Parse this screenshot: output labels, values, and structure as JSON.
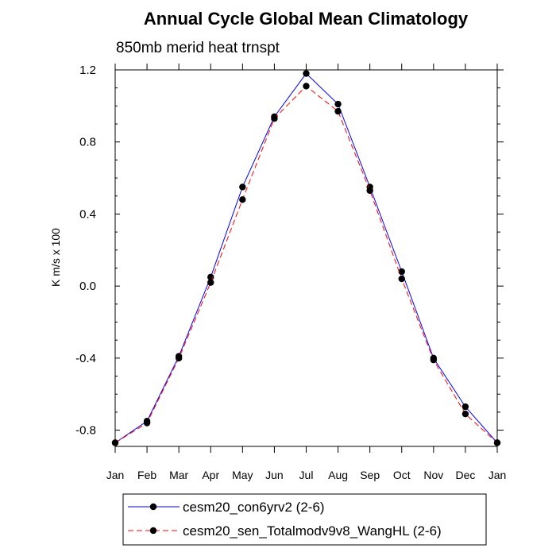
{
  "chart_data": {
    "type": "line",
    "title": "Annual Cycle Global Mean Climatology",
    "subtitle": "850mb merid heat trnspt",
    "xlabel": "",
    "ylabel": "K m/s x 100",
    "categories": [
      "Jan",
      "Feb",
      "Mar",
      "Apr",
      "May",
      "Jun",
      "Jul",
      "Aug",
      "Sep",
      "Oct",
      "Nov",
      "Dec",
      "Jan"
    ],
    "ylim": [
      -0.89,
      1.2
    ],
    "yticks": [
      -0.8,
      -0.4,
      0.0,
      0.4,
      0.8,
      1.2
    ],
    "ytick_labels": [
      "-0.8",
      "-0.4",
      "0.0",
      "0.4",
      "0.8",
      "1.2"
    ],
    "legend_position": "bottom",
    "series": [
      {
        "name": "cesm20_con6yrv2 (2-6)",
        "color": "#0000ff",
        "line_style": "solid",
        "values": [
          -0.87,
          -0.75,
          -0.39,
          0.05,
          0.55,
          0.94,
          1.18,
          1.01,
          0.55,
          0.08,
          -0.4,
          -0.67,
          -0.87
        ]
      },
      {
        "name": "cesm20_sen_Totalmodv9v8_WangHL (2-6)",
        "color": "#ff0000",
        "line_style": "dashed",
        "values": [
          -0.87,
          -0.76,
          -0.4,
          0.02,
          0.48,
          0.93,
          1.11,
          0.97,
          0.53,
          0.04,
          -0.41,
          -0.71,
          -0.87
        ]
      }
    ]
  }
}
